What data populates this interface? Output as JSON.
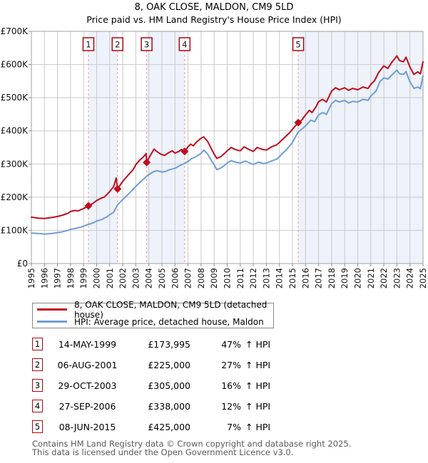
{
  "chart_data": {
    "type": "line",
    "title": "8, OAK CLOSE, MALDON, CM9 5LD",
    "subtitle": "Price paid vs. HM Land Registry's House Price Index (HPI)",
    "grid": true,
    "legend_position": "bottom",
    "x_axis": {
      "min": 1995,
      "max": 2025,
      "tick_years": [
        1995,
        1996,
        1997,
        1998,
        1999,
        2000,
        2001,
        2002,
        2003,
        2004,
        2005,
        2006,
        2007,
        2008,
        2009,
        2010,
        2011,
        2012,
        2013,
        2014,
        2015,
        2016,
        2017,
        2018,
        2019,
        2020,
        2021,
        2022,
        2023,
        2024,
        2025
      ]
    },
    "y_axis": {
      "min": 0,
      "max": 700000,
      "ticks": [
        {
          "value": 0,
          "label": "£0"
        },
        {
          "value": 100000,
          "label": "£100K"
        },
        {
          "value": 200000,
          "label": "£200K"
        },
        {
          "value": 300000,
          "label": "£300K"
        },
        {
          "value": 400000,
          "label": "£400K"
        },
        {
          "value": 500000,
          "label": "£500K"
        },
        {
          "value": 600000,
          "label": "£600K"
        },
        {
          "value": 700000,
          "label": "£700K"
        }
      ]
    },
    "colors": {
      "property_line": "#c00d1e",
      "hpi_line": "#6f9ed2",
      "shaded_band": "#eef2fa",
      "gridline": "#c9c9c9",
      "plot_border": "#a0a0a0",
      "tick": "#888888",
      "sale_dashed_line": "#f29a9a",
      "sale_box_border": "#b00510",
      "footer_text": "#595959"
    },
    "shaded_periods": [
      [
        1999.37,
        2001.6
      ],
      [
        2003.83,
        2006.74
      ],
      [
        2015.44,
        2025
      ]
    ],
    "series": [
      {
        "id": "price-paid-line",
        "name": "8, OAK CLOSE, MALDON, CM9 5LD (detached house)",
        "color_key": "property_line",
        "points": [
          [
            1995,
            140000
          ],
          [
            1995.3,
            138000
          ],
          [
            1995.6,
            136500
          ],
          [
            1996,
            136000
          ],
          [
            1996.4,
            138000
          ],
          [
            1996.8,
            140500
          ],
          [
            1997,
            142000
          ],
          [
            1997.4,
            146000
          ],
          [
            1997.8,
            151500
          ],
          [
            1998,
            157000
          ],
          [
            1998.3,
            160000
          ],
          [
            1998.6,
            159000
          ],
          [
            1999,
            166000
          ],
          [
            1999.37,
            173995
          ],
          [
            1999.7,
            181000
          ],
          [
            2000,
            190000
          ],
          [
            2000.3,
            196000
          ],
          [
            2000.6,
            201000
          ],
          [
            2001,
            217000
          ],
          [
            2001.3,
            232000
          ],
          [
            2001.5,
            258000
          ],
          [
            2001.6,
            225000
          ],
          [
            2002,
            248000
          ],
          [
            2002.4,
            266000
          ],
          [
            2002.8,
            283000
          ],
          [
            2003,
            298000
          ],
          [
            2003.3,
            312000
          ],
          [
            2003.6,
            322000
          ],
          [
            2003.79,
            332000
          ],
          [
            2003.83,
            305000
          ],
          [
            2004,
            318000
          ],
          [
            2004.2,
            332000
          ],
          [
            2004.4,
            345000
          ],
          [
            2004.6,
            338000
          ],
          [
            2004.9,
            330000
          ],
          [
            2005.2,
            326000
          ],
          [
            2005.5,
            334000
          ],
          [
            2005.8,
            340000
          ],
          [
            2006,
            333000
          ],
          [
            2006.3,
            338000
          ],
          [
            2006.5,
            344000
          ],
          [
            2006.74,
            338000
          ],
          [
            2007,
            352000
          ],
          [
            2007.2,
            360000
          ],
          [
            2007.4,
            355000
          ],
          [
            2007.7,
            368000
          ],
          [
            2008,
            378000
          ],
          [
            2008.2,
            382000
          ],
          [
            2008.5,
            368000
          ],
          [
            2008.8,
            345000
          ],
          [
            2009,
            330000
          ],
          [
            2009.2,
            317000
          ],
          [
            2009.5,
            322000
          ],
          [
            2009.8,
            332000
          ],
          [
            2010,
            340000
          ],
          [
            2010.3,
            350000
          ],
          [
            2010.6,
            344000
          ],
          [
            2011,
            340000
          ],
          [
            2011.3,
            352000
          ],
          [
            2011.6,
            345000
          ],
          [
            2012,
            338000
          ],
          [
            2012.3,
            350000
          ],
          [
            2012.7,
            344000
          ],
          [
            2013,
            342000
          ],
          [
            2013.4,
            352000
          ],
          [
            2013.8,
            358000
          ],
          [
            2014,
            365000
          ],
          [
            2014.4,
            380000
          ],
          [
            2014.8,
            395000
          ],
          [
            2015,
            405000
          ],
          [
            2015.44,
            425000
          ],
          [
            2015.7,
            432000
          ],
          [
            2016,
            448000
          ],
          [
            2016.3,
            462000
          ],
          [
            2016.5,
            455000
          ],
          [
            2016.8,
            472000
          ],
          [
            2017,
            488000
          ],
          [
            2017.3,
            495000
          ],
          [
            2017.6,
            487000
          ],
          [
            2018,
            520000
          ],
          [
            2018.3,
            530000
          ],
          [
            2018.6,
            524000
          ],
          [
            2019,
            530000
          ],
          [
            2019.3,
            522000
          ],
          [
            2019.6,
            528000
          ],
          [
            2020,
            524000
          ],
          [
            2020.4,
            532000
          ],
          [
            2020.8,
            528000
          ],
          [
            2021,
            540000
          ],
          [
            2021.3,
            552000
          ],
          [
            2021.6,
            576000
          ],
          [
            2022,
            596000
          ],
          [
            2022.3,
            588000
          ],
          [
            2022.6,
            606000
          ],
          [
            2023,
            626000
          ],
          [
            2023.2,
            612000
          ],
          [
            2023.5,
            608000
          ],
          [
            2023.7,
            622000
          ],
          [
            2024,
            592000
          ],
          [
            2024.3,
            570000
          ],
          [
            2024.6,
            578000
          ],
          [
            2024.8,
            572000
          ],
          [
            2025,
            608000
          ]
        ]
      },
      {
        "id": "hpi-line",
        "name": "HPI: Average price, detached house, Maldon",
        "color_key": "hpi_line",
        "points": [
          [
            1995,
            92000
          ],
          [
            1995.4,
            91000
          ],
          [
            1995.8,
            89500
          ],
          [
            1996,
            89000
          ],
          [
            1996.4,
            90000
          ],
          [
            1996.8,
            92000
          ],
          [
            1997,
            93500
          ],
          [
            1997.4,
            96000
          ],
          [
            1997.8,
            100000
          ],
          [
            1998,
            103000
          ],
          [
            1998.4,
            106000
          ],
          [
            1998.8,
            110000
          ],
          [
            1999,
            113000
          ],
          [
            1999.37,
            118000
          ],
          [
            1999.7,
            122000
          ],
          [
            2000,
            128000
          ],
          [
            2000.4,
            133000
          ],
          [
            2000.8,
            141000
          ],
          [
            2001,
            147000
          ],
          [
            2001.3,
            155000
          ],
          [
            2001.6,
            177000
          ],
          [
            2002,
            193000
          ],
          [
            2002.4,
            208000
          ],
          [
            2002.8,
            224000
          ],
          [
            2003,
            233000
          ],
          [
            2003.4,
            248000
          ],
          [
            2003.83,
            263000
          ],
          [
            2004,
            268000
          ],
          [
            2004.3,
            276000
          ],
          [
            2004.6,
            280000
          ],
          [
            2005,
            276000
          ],
          [
            2005.3,
            278000
          ],
          [
            2005.6,
            283000
          ],
          [
            2006,
            287000
          ],
          [
            2006.4,
            296000
          ],
          [
            2006.74,
            302000
          ],
          [
            2007,
            308000
          ],
          [
            2007.3,
            317000
          ],
          [
            2007.6,
            322000
          ],
          [
            2008,
            332000
          ],
          [
            2008.2,
            342000
          ],
          [
            2008.5,
            330000
          ],
          [
            2008.8,
            310000
          ],
          [
            2009,
            298000
          ],
          [
            2009.2,
            283000
          ],
          [
            2009.5,
            288000
          ],
          [
            2009.8,
            296000
          ],
          [
            2010,
            303000
          ],
          [
            2010.3,
            310000
          ],
          [
            2010.6,
            306000
          ],
          [
            2011,
            303000
          ],
          [
            2011.4,
            309000
          ],
          [
            2011.8,
            302000
          ],
          [
            2012,
            299000
          ],
          [
            2012.4,
            306000
          ],
          [
            2012.8,
            301000
          ],
          [
            2013,
            303000
          ],
          [
            2013.4,
            309000
          ],
          [
            2013.8,
            315000
          ],
          [
            2014,
            322000
          ],
          [
            2014.4,
            338000
          ],
          [
            2014.8,
            355000
          ],
          [
            2015,
            365000
          ],
          [
            2015.44,
            397000
          ],
          [
            2015.8,
            408000
          ],
          [
            2016,
            415000
          ],
          [
            2016.4,
            432000
          ],
          [
            2016.7,
            428000
          ],
          [
            2017,
            448000
          ],
          [
            2017.3,
            455000
          ],
          [
            2017.6,
            450000
          ],
          [
            2018,
            482000
          ],
          [
            2018.3,
            492000
          ],
          [
            2018.6,
            487000
          ],
          [
            2019,
            492000
          ],
          [
            2019.3,
            484000
          ],
          [
            2019.6,
            489000
          ],
          [
            2020,
            487000
          ],
          [
            2020.4,
            495000
          ],
          [
            2020.8,
            492000
          ],
          [
            2021,
            505000
          ],
          [
            2021.4,
            520000
          ],
          [
            2021.7,
            548000
          ],
          [
            2022,
            560000
          ],
          [
            2022.3,
            556000
          ],
          [
            2022.6,
            568000
          ],
          [
            2023,
            583000
          ],
          [
            2023.2,
            572000
          ],
          [
            2023.5,
            570000
          ],
          [
            2023.7,
            579000
          ],
          [
            2024,
            548000
          ],
          [
            2024.3,
            528000
          ],
          [
            2024.6,
            532000
          ],
          [
            2024.8,
            527000
          ],
          [
            2025,
            565000
          ]
        ]
      }
    ]
  },
  "transactions": [
    {
      "num": "1",
      "date": "14-MAY-1999",
      "price": "£173,995",
      "price_value": 173995,
      "year": 1999.37,
      "pct": "47%"
    },
    {
      "num": "2",
      "date": "06-AUG-2001",
      "price": "£225,000",
      "price_value": 225000,
      "year": 2001.6,
      "pct": "27%"
    },
    {
      "num": "3",
      "date": "29-OCT-2003",
      "price": "£305,000",
      "price_value": 305000,
      "year": 2003.83,
      "pct": "16%"
    },
    {
      "num": "4",
      "date": "27-SEP-2006",
      "price": "£338,000",
      "price_value": 338000,
      "year": 2006.74,
      "pct": "12%"
    },
    {
      "num": "5",
      "date": "08-JUN-2015",
      "price": "£425,000",
      "price_value": 425000,
      "year": 2015.44,
      "pct": "7%"
    }
  ],
  "table": {
    "hpi_suffix": "↑ HPI"
  },
  "footer": {
    "line1": "Contains HM Land Registry data © Crown copyright and database right 2025.",
    "line2": "This data is licensed under the Open Government Licence v3.0."
  }
}
